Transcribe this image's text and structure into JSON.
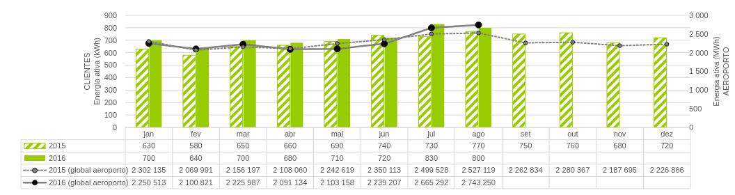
{
  "chart_data": {
    "type": "bar",
    "categories": [
      "jan",
      "fev",
      "mar",
      "abr",
      "mai",
      "jun",
      "jul",
      "ago",
      "set",
      "out",
      "nov",
      "dez"
    ],
    "ylabel": "CLIENTES\nEnergia ativa (kWh)",
    "y2label": "Energia ativa (MWh)\nAEROPORTO",
    "ylim": [
      0,
      900
    ],
    "yticks": [
      0,
      100,
      200,
      300,
      400,
      500,
      600,
      700,
      800,
      900
    ],
    "y2lim": [
      0,
      3000
    ],
    "y2ticks": [
      0,
      500,
      {
        "value": 1000,
        "label": "1 000"
      },
      {
        "value": 1500,
        "label": "1 500"
      },
      {
        "value": 2000,
        "label": "2 000"
      },
      {
        "value": 2500,
        "label": "2 500"
      },
      {
        "value": 3000,
        "label": "3 000"
      }
    ],
    "grid": "y",
    "legend": "bottom left",
    "annotations": [
      "2 302 135",
      "2 069 991",
      "2 156 197",
      "2 108 060",
      "2 242 619",
      "2 350 113",
      "2 499 528",
      "2 527 119",
      "2 262 834",
      "2 280 367",
      "2 187 695",
      "2 226 866",
      "2 250 513",
      "2 100 821",
      "2 225 987",
      "2 091 134",
      "2 103 158",
      "2 239 207",
      "2 665 292",
      "2 743 250"
    ],
    "series": [
      {
        "name": "2015",
        "color": "#99cc00",
        "values": [
          630,
          580,
          650,
          660,
          690,
          740,
          730,
          770,
          750,
          760,
          680,
          720
        ],
        "value_labels": [
          "630",
          "580",
          "650",
          "660",
          "690",
          "740",
          "730",
          "770",
          "750",
          "760",
          "680",
          "720"
        ]
      },
      {
        "name": "2016",
        "color": "#99cc00",
        "values": [
          700,
          640,
          700,
          680,
          710,
          720,
          830,
          800,
          null,
          null,
          null,
          null
        ],
        "value_labels": [
          "700",
          "640",
          "700",
          "680",
          "710",
          "720",
          "830",
          "800",
          null,
          null,
          null,
          null
        ]
      },
      {
        "name": "2015 (global aeroporto)",
        "type": "line",
        "axis": "y2",
        "color": "#808080",
        "line_style": "dotted",
        "marker": "circle",
        "values": [
          2302,
          2070,
          2156,
          2108,
          2243,
          2350,
          2500,
          2527,
          2263,
          2280,
          2188,
          2227
        ]
      },
      {
        "name": "2016 (global aeroporto)",
        "type": "line",
        "axis": "y2",
        "color": "#808080",
        "line_style": "solid",
        "marker": "circle",
        "values": [
          2251,
          2101,
          2226,
          2091,
          2103,
          2239,
          2665,
          2743,
          null,
          null,
          null,
          null
        ]
      }
    ]
  }
}
